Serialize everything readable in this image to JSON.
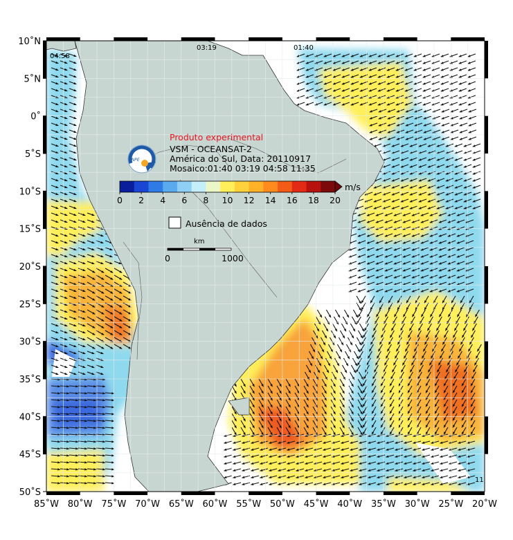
{
  "title_red": "Produto experimental",
  "info_lines": [
    "VSM - OCEANSAT-2",
    "América do Sul, Data: 20110917",
    "Mosaico:01:40 03:19 04:58 11:35"
  ],
  "pass_labels": [
    "04:58",
    "03:19",
    "01:40",
    "11"
  ],
  "colorbar": {
    "unit": "m/s",
    "ticks": [
      "0",
      "2",
      "4",
      "6",
      "8",
      "10",
      "12",
      "14",
      "16",
      "18",
      "20"
    ],
    "colors": [
      "#0a1e9c",
      "#1946d2",
      "#2e7be6",
      "#5aaaf0",
      "#8fcff5",
      "#c4eefa",
      "#ecf7c8",
      "#ffef5a",
      "#ffd23c",
      "#ffb128",
      "#ff8a1e",
      "#f45a18",
      "#e32a14",
      "#b8120f",
      "#7d0a0a"
    ]
  },
  "legend_nodata": "Ausência de dados",
  "scale_bar": {
    "unit": "km",
    "min": "0",
    "max": "1000"
  },
  "lat_labels": [
    "10˚N",
    "5˚N",
    "0˚",
    "5˚S",
    "10˚S",
    "15˚S",
    "20˚S",
    "25˚S",
    "30˚S",
    "35˚S",
    "40˚S",
    "45˚S",
    "50˚S"
  ],
  "lon_labels": [
    "85˚W",
    "80˚W",
    "75˚W",
    "70˚W",
    "65˚W",
    "60˚W",
    "55˚W",
    "50˚W",
    "45˚W",
    "40˚W",
    "35˚W",
    "30˚W",
    "25˚W",
    "20˚W"
  ],
  "colors": {
    "land": "#c8d6d2",
    "arrow": "#111111",
    "title_red": "#e8141e",
    "wind_low": "#8fd9ee",
    "wind_mid": "#ffef5a",
    "wind_high": "#f07024",
    "wind_calm": "#3c6ee0"
  }
}
